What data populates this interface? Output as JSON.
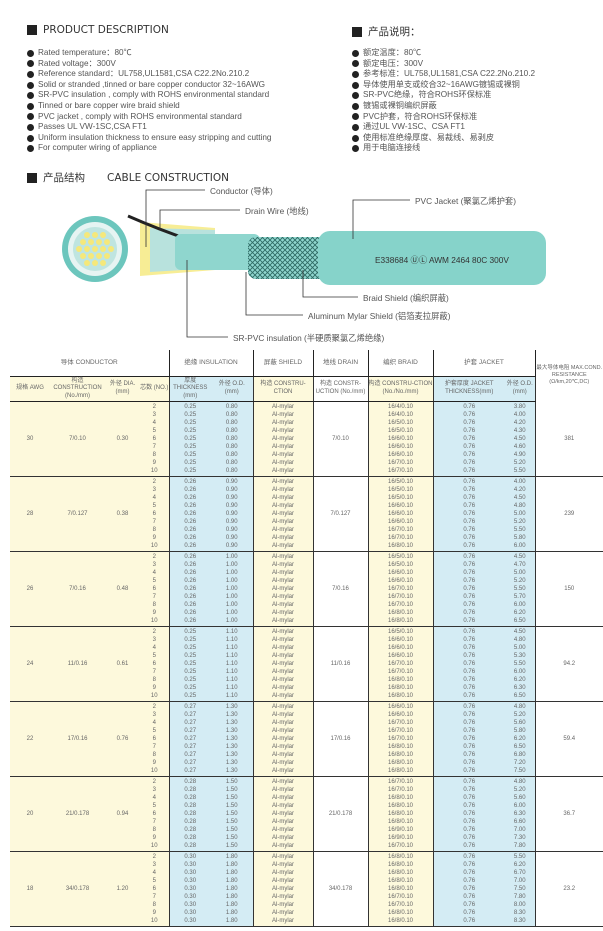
{
  "desc_en": {
    "title": "PRODUCT DESCRIPTION",
    "items": [
      "Rated temperature：80℃",
      "Rated voltage：300V",
      "Reference standard：UL758,UL1581,CSA C22.2No.210.2",
      "Solid or stranded ,tinned or bare copper conductor 32~16AWG",
      "SR-PVC insulation , comply with ROHS environmental standard",
      "Tinned or bare copper wire braid shield",
      "PVC jacket , comply with ROHS environmental standard",
      "Passes UL VW-1SC,CSA FT1",
      "Uniform insulation thickness to ensure easy stripping and cutting",
      "For computer wiring of appliance"
    ]
  },
  "desc_cn": {
    "title": "产品说明：",
    "items": [
      "额定温度：80℃",
      "额定电压：300V",
      "参考标准：UL758,UL1581,CSA C22.2No.210.2",
      "导体使用单支或绞合32~16AWG镀锡或裸铜",
      "SR-PVC绝缘，符合ROHS环保标准",
      "镀锡或裸铜编织屏蔽",
      "PVC护套，符合ROHS环保标准",
      "通过UL VW-1SC、CSA FT1",
      "使用标准绝缘厚度、易裁线、易剥皮",
      "用于电脑连接线"
    ]
  },
  "construction": {
    "title_cn": "产品结构",
    "title_en": "CABLE CONSTRUCTION",
    "labels": {
      "conductor": "Conductor (导体)",
      "drain": "Drain Wire (地线)",
      "jacket": "PVC Jacket (聚氯乙烯护套)",
      "braid": "Braid Shield (编织屏蔽)",
      "mylar": "Aluminum Mylar Shield (铝箔麦拉屏蔽)",
      "insulation": "SR-PVC insulation (半硬质聚氯乙烯绝缘)"
    },
    "marking": "E338684  ⓊⓁ  AWM 2464 80C 300V",
    "colors": {
      "jacket": "#7fd0c8",
      "conductor": "#f5e87a",
      "drain": "#222222"
    }
  },
  "table": {
    "groups": {
      "conductor": "导体 CONDUCTOR",
      "insulation": "绝缘 INSULATION",
      "shield": "屏蔽 SHIELD",
      "drain": "地线 DRAIN",
      "braid": "编织 BRAID",
      "jacket": "护套 JACKET"
    },
    "headers": {
      "awg": "规格 AWG",
      "construction": "构造 CONSTRUCTION (No./mm)",
      "dia": "外径 DIA. (mm)",
      "cores": "芯数 (NO.)",
      "ins_thick": "厚度 THICKNESS (mm)",
      "ins_od": "外径 O.D. (mm)",
      "shield": "构造 CONSTRU-CTION",
      "drain": "构造 CONSTR-UCTION (No./mm)",
      "braid": "构造 CONSTRU-CTION (No./No./mm)",
      "jk_thick": "护套厚度 JACKET THICKNESS(mm)",
      "jk_od": "外径 O.D. (mm)",
      "resistance": "最大导体电阻 MAX.COND. RESISTANCE (Ω/km,20℃,DC)"
    },
    "cores": [
      "2",
      "3",
      "4",
      "5",
      "6",
      "7",
      "8",
      "9",
      "10"
    ],
    "shield_value": "Al-mylar",
    "jacket_thickness": "0.76",
    "rows": [
      {
        "awg": "30",
        "construction": "7/0.10",
        "dia": "0.30",
        "ins_thick": "0.25",
        "ins_od": "0.80",
        "drain": "7/0.10",
        "braid": [
          "16/4/0.10",
          "16/4/0.10",
          "16/5/0.10",
          "16/5/0.10",
          "16/6/0.10",
          "16/6/0.10",
          "16/6/0.10",
          "16/7/0.10",
          "16/7/0.10"
        ],
        "jk_od": [
          "3.80",
          "4.00",
          "4.20",
          "4.30",
          "4.50",
          "4.60",
          "4.90",
          "5.20",
          "5.50"
        ],
        "resistance": "381"
      },
      {
        "awg": "28",
        "construction": "7/0.127",
        "dia": "0.38",
        "ins_thick": "0.26",
        "ins_od": "0.90",
        "drain": "7/0.127",
        "braid": [
          "16/5/0.10",
          "16/5/0.10",
          "16/5/0.10",
          "16/6/0.10",
          "16/6/0.10",
          "16/6/0.10",
          "16/7/0.10",
          "16/7/0.10",
          "16/8/0.10"
        ],
        "jk_od": [
          "4.00",
          "4.20",
          "4.50",
          "4.80",
          "5.00",
          "5.20",
          "5.50",
          "5.80",
          "6.00"
        ],
        "resistance": "239"
      },
      {
        "awg": "26",
        "construction": "7/0.16",
        "dia": "0.48",
        "ins_thick": "0.26",
        "ins_od": "1.00",
        "drain": "7/0.16",
        "braid": [
          "16/5/0.10",
          "16/5/0.10",
          "16/6/0.10",
          "16/6/0.10",
          "16/7/0.10",
          "16/7/0.10",
          "16/7/0.10",
          "16/8/0.10",
          "16/8/0.10"
        ],
        "jk_od": [
          "4.50",
          "4.70",
          "5.00",
          "5.20",
          "5.50",
          "5.70",
          "6.00",
          "6.20",
          "6.50"
        ],
        "resistance": "150"
      },
      {
        "awg": "24",
        "construction": "11/0.16",
        "dia": "0.61",
        "ins_thick": "0.25",
        "ins_od": "1.10",
        "drain": "11/0.16",
        "braid": [
          "16/5/0.10",
          "16/6/0.10",
          "16/6/0.10",
          "16/6/0.10",
          "16/7/0.10",
          "16/7/0.10",
          "16/8/0.10",
          "16/8/0.10",
          "16/8/0.10"
        ],
        "jk_od": [
          "4.50",
          "4.80",
          "5.00",
          "5.30",
          "5.50",
          "6.00",
          "6.20",
          "6.30",
          "6.50"
        ],
        "resistance": "94.2"
      },
      {
        "awg": "22",
        "construction": "17/0.16",
        "dia": "0.76",
        "ins_thick": "0.27",
        "ins_od": "1.30",
        "drain": "17/0.16",
        "braid": [
          "16/6/0.10",
          "16/6/0.10",
          "16/7/0.10",
          "16/7/0.10",
          "16/7/0.10",
          "16/8/0.10",
          "16/8/0.10",
          "16/8/0.10",
          "16/8/0.10"
        ],
        "jk_od": [
          "4.80",
          "5.20",
          "5.60",
          "5.80",
          "6.20",
          "6.50",
          "6.80",
          "7.20",
          "7.50"
        ],
        "resistance": "59.4"
      },
      {
        "awg": "20",
        "construction": "21/0.178",
        "dia": "0.94",
        "ins_thick": "0.28",
        "ins_od": "1.50",
        "drain": "21/0.178",
        "braid": [
          "16/7/0.10",
          "16/7/0.10",
          "16/8/0.10",
          "16/8/0.10",
          "16/8/0.10",
          "16/8/0.10",
          "16/9/0.10",
          "16/9/0.10",
          "16/7/0.10"
        ],
        "jk_od": [
          "4.80",
          "5.20",
          "5.60",
          "6.00",
          "6.30",
          "6.60",
          "7.00",
          "7.30",
          "7.80"
        ],
        "resistance": "36.7"
      },
      {
        "awg": "18",
        "construction": "34/0.178",
        "dia": "1.20",
        "ins_thick": "0.30",
        "ins_od": "1.80",
        "drain": "34/0.178",
        "braid": [
          "16/8/0.10",
          "16/8/0.10",
          "16/8/0.10",
          "16/8/0.10",
          "16/8/0.10",
          "16/7/0.10",
          "16/7/0.10",
          "16/8/0.10",
          "16/8/0.10"
        ],
        "jk_od": [
          "5.50",
          "6.20",
          "6.70",
          "7.00",
          "7.50",
          "7.80",
          "8.00",
          "8.30",
          "8.30"
        ],
        "resistance": "23.2"
      }
    ]
  }
}
